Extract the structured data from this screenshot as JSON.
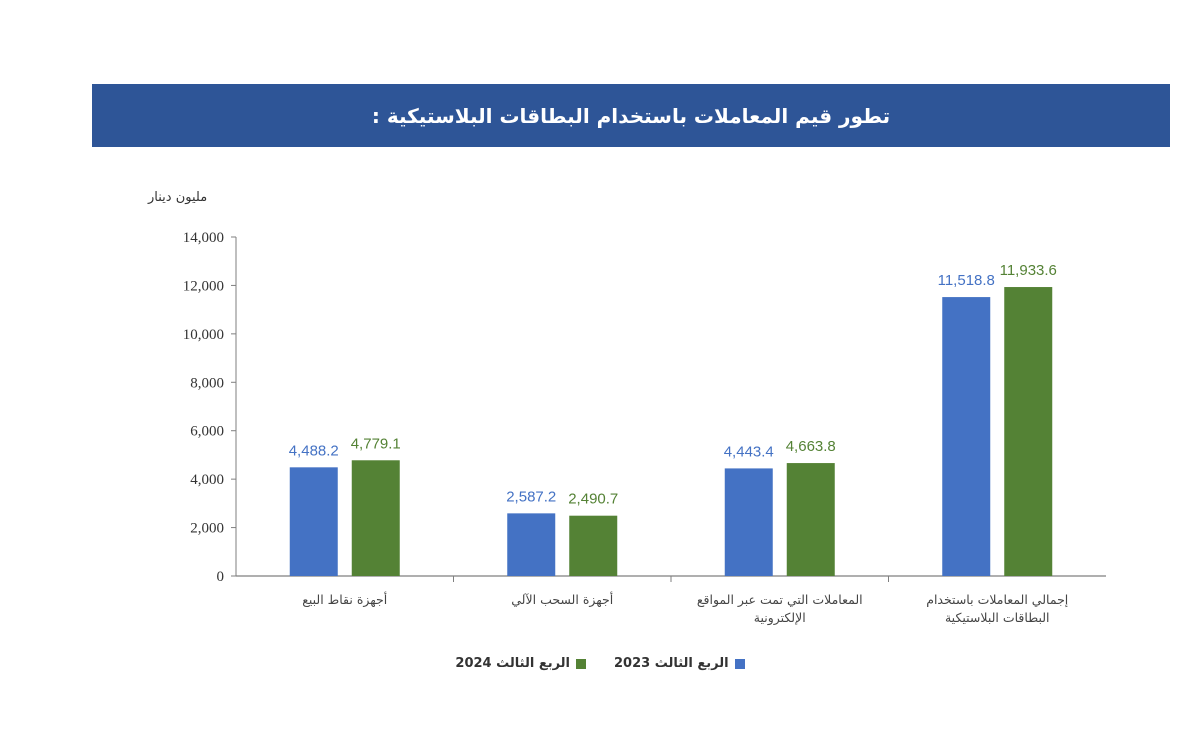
{
  "header": {
    "title": "تطور قيم المعاملات باستخدام البطاقات البلاستيكية :"
  },
  "chart_data": {
    "type": "bar",
    "ylabel": "مليون دينار",
    "ylim": [
      0,
      14000
    ],
    "yticks": [
      "0",
      "2,000",
      "4,000",
      "6,000",
      "8,000",
      "10,000",
      "12,000",
      "14,000"
    ],
    "grid": false,
    "legend_position": "bottom",
    "categories": [
      [
        "أجهزة  نقاط البيع"
      ],
      [
        "أجهزة السحب الآلي"
      ],
      [
        "المعاملات التي تمت عبر المواقع",
        "الإلكترونية"
      ],
      [
        "إجمالي المعاملات باستخدام",
        "البطاقات البلاستيكية"
      ]
    ],
    "series": [
      {
        "name": "الربع الثالث 2023",
        "color": "#4472c4",
        "values": [
          4488.2,
          2587.2,
          4443.4,
          11518.8
        ],
        "labels": [
          "4,488.2",
          "2,587.2",
          "4,443.4",
          "11,518.8"
        ]
      },
      {
        "name": "الربع الثالث 2024",
        "color": "#548235",
        "values": [
          4779.1,
          2490.7,
          4663.8,
          11933.6
        ],
        "labels": [
          "4,779.1",
          "2,490.7",
          "4,663.8",
          "11,933.6"
        ]
      }
    ]
  }
}
